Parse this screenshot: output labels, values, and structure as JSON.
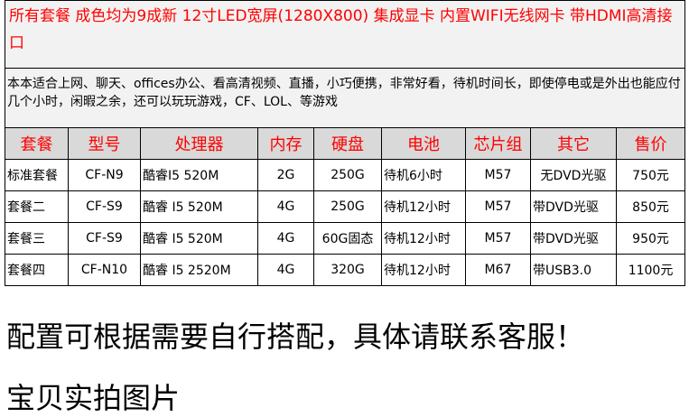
{
  "banner": {
    "headline": "所有套餐 成色均为9成新 12寸LED宽屏(1280X800) 集成显卡  内置WIFI无线网卡  带HDMI高清接口",
    "description": "本本适合上网、聊天、offices办公、看高清视频、直播，小巧便携，非常好看，待机时间长，即使停电或是外出也能应付几个小时，闲暇之余，还可以玩玩游戏，CF、LOL、等游戏"
  },
  "table": {
    "headers": [
      "套餐",
      "型号",
      "处理器",
      "内存",
      "硬盘",
      "电池",
      "芯片组",
      "其它",
      "售价"
    ],
    "rows": [
      {
        "package": "标准套餐",
        "model": "CF-N9",
        "cpu": "酷睿I5 520M",
        "ram": "2G",
        "disk": "250G",
        "battery": "待机6小时",
        "chipset": "M57",
        "other": "无DVD光驱",
        "price": "750元"
      },
      {
        "package": "套餐二",
        "model": "CF-S9",
        "cpu": "酷睿 I5 520M",
        "ram": "4G",
        "disk": "250G",
        "battery": "待机12小时",
        "chipset": "M57",
        "other": "带DVD光驱",
        "price": "850元"
      },
      {
        "package": "套餐三",
        "model": "CF-S9",
        "cpu": "酷睿 I5 520M",
        "ram": "4G",
        "disk": "60G固态",
        "battery": "待机12小时",
        "chipset": "M57",
        "other": "带DVD光驱",
        "price": "950元"
      },
      {
        "package": "套餐四",
        "model": "CF-N10",
        "cpu": "酷睿 I5 2520M",
        "ram": "4G",
        "disk": "320G",
        "battery": "待机12小时",
        "chipset": "M67",
        "other": "带USB3.0",
        "price": "1100元"
      }
    ]
  },
  "note": "配置可根据需要自行搭配，具体请联系客服！",
  "photos_heading": "宝贝实拍图片",
  "colors": {
    "accent_red": "#ff0000",
    "header_bg": "#d9d9d9",
    "banner_bg": "#f2f2f2"
  }
}
